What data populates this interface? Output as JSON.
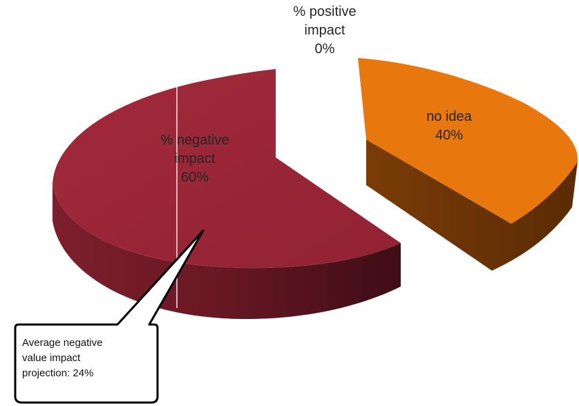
{
  "chart_data": {
    "type": "pie",
    "style": "3d-exploded",
    "slices": [
      {
        "name": "% positive impact",
        "label_lines": [
          "% positive",
          "impact"
        ],
        "value_label": "0%",
        "value": 0,
        "color": "#4F81BD"
      },
      {
        "name": "no idea",
        "label_lines": [
          "no idea"
        ],
        "value_label": "40%",
        "value": 40,
        "color": "#E8770E",
        "side_color": "#633006"
      },
      {
        "name": "% negative impact",
        "label_lines": [
          "% negative",
          "impact"
        ],
        "value_label": "60%",
        "value": 60,
        "color": "#9B2637",
        "side_color": "#6B1A24"
      }
    ],
    "annotation": {
      "lines": [
        "Average negative",
        "value impact",
        "projection: 24%"
      ]
    }
  }
}
